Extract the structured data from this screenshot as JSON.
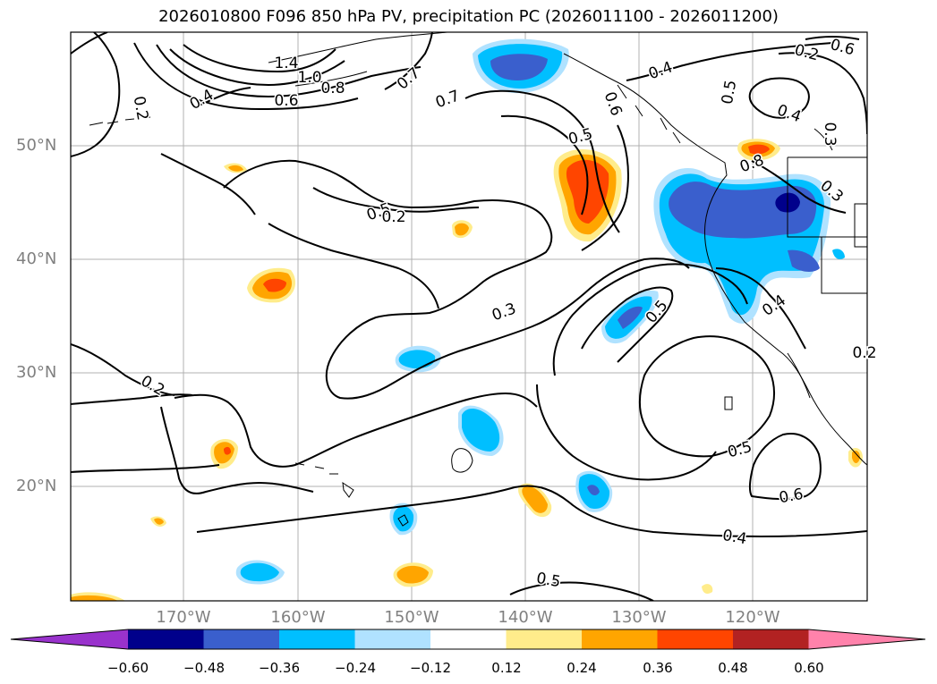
{
  "title": "2026010800 F096 850 hPa PV, precipitation PC (2026011100 - 2026011200)",
  "lat_labels": [
    "50°N",
    "40°N",
    "30°N",
    "20°N"
  ],
  "lon_labels": [
    "170°W",
    "160°W",
    "150°W",
    "140°W",
    "130°W",
    "120°W"
  ],
  "contour_labels": [
    "1.4",
    "1.0",
    "0.8",
    "0.6",
    "0.7",
    "0.7",
    "0.4",
    "0.2",
    "0.4",
    "0.6",
    "0.5",
    "0.4",
    "0.3",
    "0.5",
    "0.8",
    "0.5",
    "0.5",
    "0.4",
    "0.3",
    "0.3",
    "0.5",
    "0.6",
    "0.4",
    "0.2",
    "0.5",
    "0.6",
    "0.2",
    "0.2",
    "0.2"
  ],
  "colorbar": {
    "ticks": [
      "−0.60",
      "−0.48",
      "−0.36",
      "−0.24",
      "−0.12",
      "0.12",
      "0.24",
      "0.36",
      "0.48",
      "0.60"
    ],
    "colors": [
      "#9932cc",
      "#00008b",
      "#3a5fcd",
      "#00bfff",
      "#b0e2ff",
      "#ffffff",
      "#ffec8b",
      "#ffa500",
      "#ff4500",
      "#b22222",
      "#ff82ab"
    ]
  }
}
